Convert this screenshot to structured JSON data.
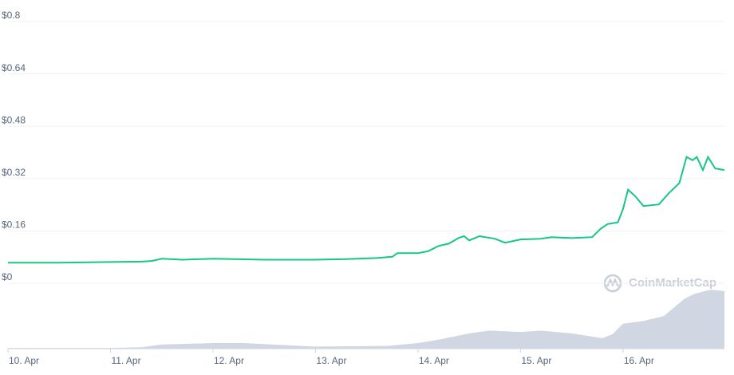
{
  "chart_data": {
    "type": "line",
    "watermark": "CoinMarketCap",
    "xlim": [
      10,
      16.99
    ],
    "xticks": [
      {
        "value": 10,
        "label": "10. Apr"
      },
      {
        "value": 11,
        "label": "11. Apr"
      },
      {
        "value": 12,
        "label": "12. Apr"
      },
      {
        "value": 13,
        "label": "13. Apr"
      },
      {
        "value": 14,
        "label": "14. Apr"
      },
      {
        "value": 15,
        "label": "15. Apr"
      },
      {
        "value": 16,
        "label": "16. Apr"
      }
    ],
    "ylim": [
      0,
      0.8
    ],
    "yticks": [
      {
        "value": 0,
        "label": "$0"
      },
      {
        "value": 0.16,
        "label": "$0.16"
      },
      {
        "value": 0.32,
        "label": "$0.32"
      },
      {
        "value": 0.48,
        "label": "$0.48"
      },
      {
        "value": 0.64,
        "label": "$0.64"
      },
      {
        "value": 0.8,
        "label": "$0.8"
      }
    ],
    "y2lim": [
      0,
      100
    ],
    "grid": true,
    "series": [
      {
        "color": "#16c784",
        "x": [
          10.0,
          10.5,
          11.0,
          11.3,
          11.4,
          11.5,
          11.7,
          12.0,
          12.5,
          13.0,
          13.3,
          13.6,
          13.75,
          13.8,
          14.0,
          14.1,
          14.2,
          14.3,
          14.4,
          14.45,
          14.5,
          14.6,
          14.75,
          14.85,
          15.0,
          15.2,
          15.3,
          15.5,
          15.7,
          15.78,
          15.85,
          15.95,
          16.0,
          16.05,
          16.12,
          16.2,
          16.35,
          16.45,
          16.55,
          16.62,
          16.68,
          16.72,
          16.78,
          16.83,
          16.9,
          16.99
        ],
        "values": [
          0.063,
          0.063,
          0.065,
          0.066,
          0.068,
          0.075,
          0.072,
          0.075,
          0.072,
          0.072,
          0.074,
          0.077,
          0.081,
          0.092,
          0.092,
          0.098,
          0.114,
          0.121,
          0.139,
          0.144,
          0.131,
          0.144,
          0.136,
          0.124,
          0.134,
          0.136,
          0.141,
          0.138,
          0.141,
          0.166,
          0.181,
          0.186,
          0.226,
          0.286,
          0.266,
          0.236,
          0.241,
          0.276,
          0.306,
          0.386,
          0.376,
          0.386,
          0.346,
          0.386,
          0.351,
          0.346
        ]
      },
      {
        "color": "#d1d6e3",
        "axis": "y2",
        "x": [
          10.0,
          11.0,
          11.3,
          11.5,
          12.0,
          12.3,
          13.0,
          13.7,
          14.0,
          14.2,
          14.5,
          14.7,
          15.0,
          15.2,
          15.5,
          15.8,
          15.9,
          16.0,
          16.2,
          16.4,
          16.6,
          16.7,
          16.85,
          16.99
        ],
        "values": [
          1,
          1,
          2,
          6,
          8,
          8,
          3,
          4,
          8,
          13,
          22,
          26,
          24,
          26,
          22,
          15,
          21,
          36,
          40,
          47,
          72,
          79,
          85,
          83
        ]
      }
    ]
  }
}
